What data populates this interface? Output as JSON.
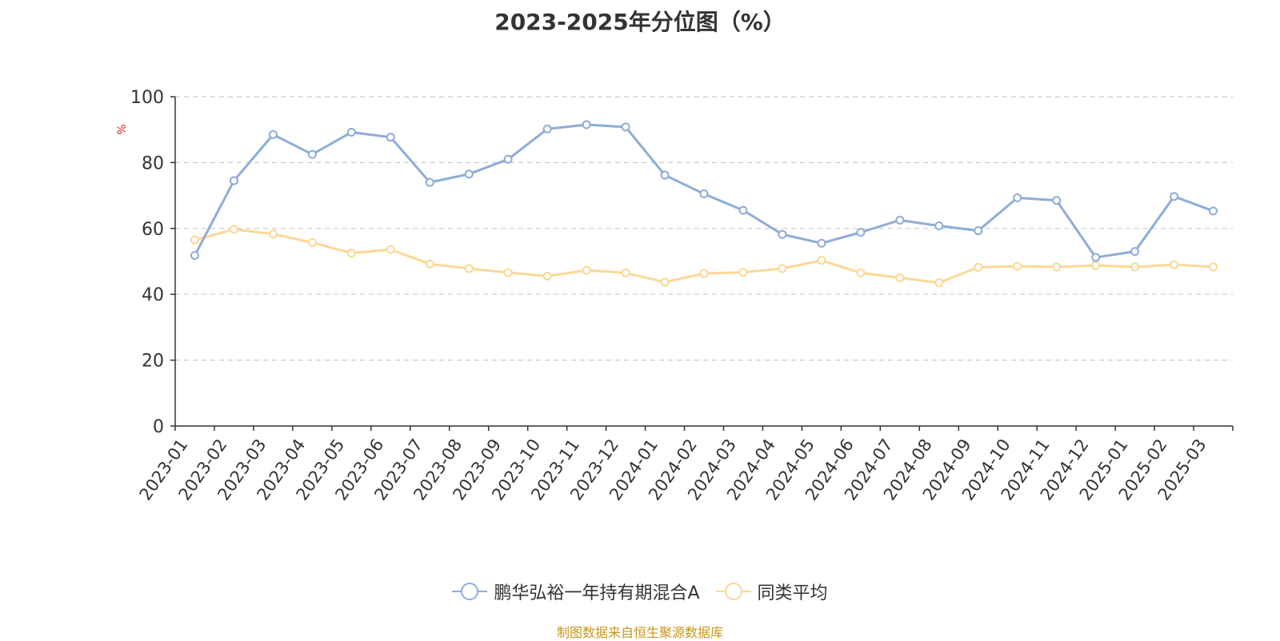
{
  "title": "2023-2025年分位图（%）",
  "source_note": "制图数据来自恒生聚源数据库",
  "colors": {
    "series1": "#8eacd8",
    "series2": "#fcd894",
    "axis": "#333333",
    "grid": "#cccccc",
    "ylabel": "#e02020",
    "source": "#c8961e"
  },
  "chart_data": {
    "type": "line",
    "title": "2023-2025年分位图（%）",
    "xlabel": "",
    "ylabel": "%",
    "ylim": [
      0,
      100
    ],
    "yticks": [
      0,
      20,
      40,
      60,
      80,
      100
    ],
    "grid": true,
    "legend": "bottom-center",
    "categories": [
      "2023-01",
      "2023-02",
      "2023-03",
      "2023-04",
      "2023-05",
      "2023-06",
      "2023-07",
      "2023-08",
      "2023-09",
      "2023-10",
      "2023-11",
      "2023-12",
      "2024-01",
      "2024-02",
      "2024-03",
      "2024-04",
      "2024-05",
      "2024-06",
      "2024-07",
      "2024-08",
      "2024-09",
      "2024-10",
      "2024-11",
      "2024-12",
      "2025-01",
      "2025-02",
      "2025-03"
    ],
    "series": [
      {
        "name": "鹏华弘裕一年持有期混合A",
        "values": [
          51.8,
          74.5,
          88.5,
          82.5,
          89.2,
          87.7,
          74.0,
          76.5,
          81.0,
          90.2,
          91.5,
          90.8,
          76.2,
          70.5,
          65.5,
          58.2,
          55.5,
          58.8,
          62.5,
          60.8,
          59.3,
          69.3,
          68.5,
          51.2,
          53.0,
          69.7,
          65.3
        ]
      },
      {
        "name": "同类平均",
        "values": [
          56.5,
          59.7,
          58.3,
          55.7,
          52.5,
          53.6,
          49.2,
          47.8,
          46.6,
          45.5,
          47.3,
          46.5,
          43.7,
          46.3,
          46.7,
          47.8,
          50.3,
          46.5,
          45.0,
          43.5,
          48.2,
          48.5,
          48.3,
          48.8,
          48.3,
          49.0,
          48.3
        ]
      }
    ]
  }
}
